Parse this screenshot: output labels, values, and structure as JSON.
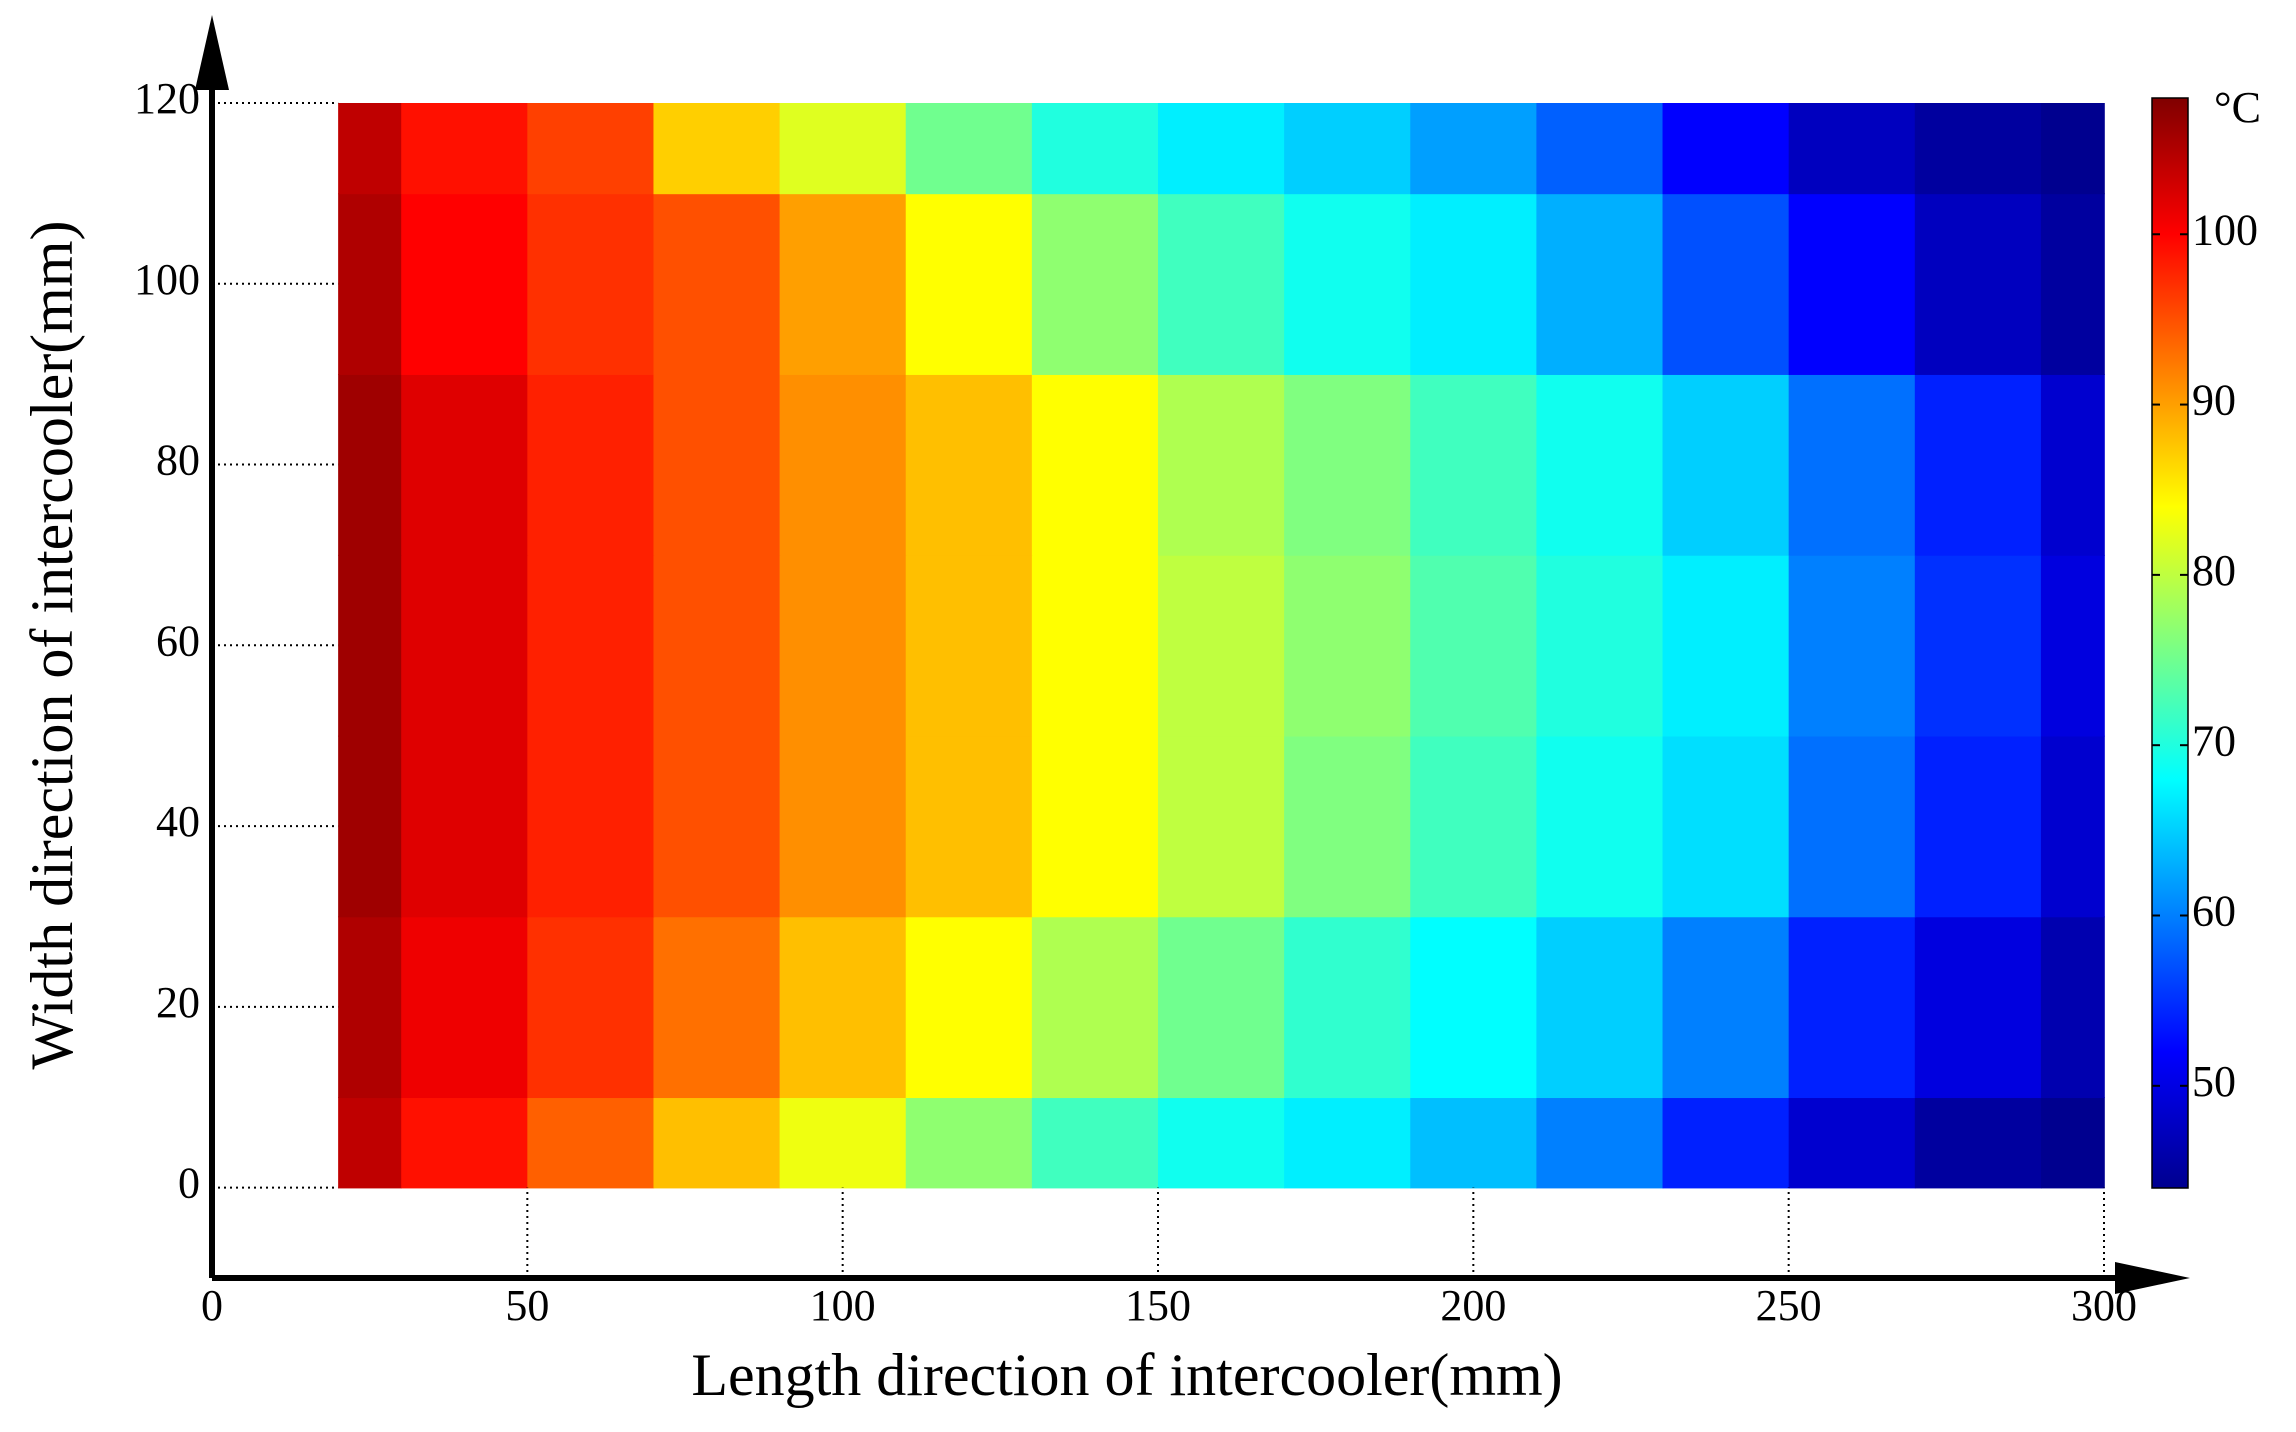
{
  "chart_data": {
    "type": "heatmap",
    "x_label": "Length direction of intercooler(mm)",
    "y_label": "Width direction of intercooler(mm)",
    "x": [
      20,
      40,
      60,
      80,
      100,
      120,
      140,
      160,
      180,
      200,
      220,
      240,
      260,
      280,
      300
    ],
    "y": [
      0,
      20,
      40,
      60,
      80,
      100,
      120
    ],
    "z": [
      [
        104,
        99,
        94,
        88,
        83,
        77,
        72,
        69,
        67,
        64,
        60,
        54,
        49,
        46,
        45
      ],
      [
        105,
        101,
        97,
        93,
        88,
        84,
        79,
        75,
        71,
        68,
        65,
        60,
        54,
        50,
        47
      ],
      [
        106,
        102,
        98,
        95,
        91,
        88,
        84,
        80,
        76,
        72,
        69,
        66,
        59,
        54,
        49
      ],
      [
        106,
        102,
        98,
        95,
        91,
        88,
        84,
        80,
        77,
        73,
        70,
        67,
        60,
        55,
        50
      ],
      [
        106,
        102,
        98,
        95,
        91,
        88,
        84,
        79,
        76,
        72,
        69,
        65,
        59,
        54,
        49
      ],
      [
        105,
        100,
        97,
        95,
        90,
        84,
        77,
        72,
        69,
        67,
        63,
        57,
        52,
        48,
        46
      ],
      [
        104,
        99,
        96,
        87,
        82,
        75,
        70,
        67,
        65,
        62,
        58,
        52,
        48,
        46,
        45
      ]
    ],
    "xlim": [
      0,
      300
    ],
    "ylim": [
      -10,
      120
    ],
    "xticks": [
      0,
      50,
      100,
      150,
      200,
      250,
      300
    ],
    "yticks": [
      0,
      20,
      40,
      60,
      80,
      100,
      120
    ],
    "colormap": "jet",
    "clim": [
      44,
      108
    ],
    "colorbar": {
      "label": "°C",
      "ticks": [
        50,
        60,
        70,
        80,
        90,
        100
      ]
    }
  }
}
